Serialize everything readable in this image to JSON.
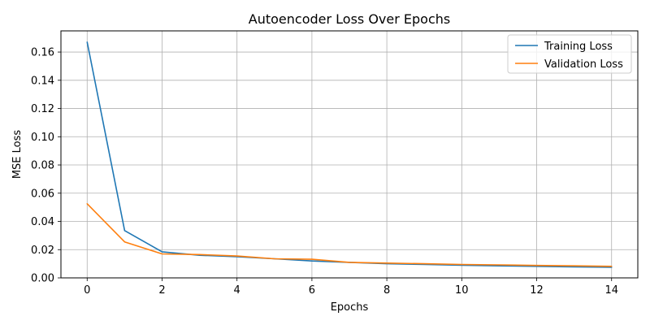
{
  "chart_data": {
    "type": "line",
    "title": "Autoencoder Loss Over Epochs",
    "xlabel": "Epochs",
    "ylabel": "MSE Loss",
    "xlim": [
      -0.7,
      14.7
    ],
    "ylim": [
      0,
      0.175
    ],
    "xticks": [
      0,
      2,
      4,
      6,
      8,
      10,
      12,
      14
    ],
    "yticks": [
      0.0,
      0.02,
      0.04,
      0.06,
      0.08,
      0.1,
      0.12,
      0.14,
      0.16
    ],
    "xtick_labels": [
      "0",
      "2",
      "4",
      "6",
      "8",
      "10",
      "12",
      "14"
    ],
    "ytick_labels": [
      "0.00",
      "0.02",
      "0.04",
      "0.06",
      "0.08",
      "0.10",
      "0.12",
      "0.14",
      "0.16"
    ],
    "grid": true,
    "legend_position": "top-right",
    "x": [
      0,
      1,
      2,
      3,
      4,
      5,
      6,
      7,
      8,
      9,
      10,
      11,
      12,
      13,
      14
    ],
    "series": [
      {
        "name": "Training Loss",
        "color": "#1f77b4",
        "values": [
          0.167,
          0.0335,
          0.0185,
          0.016,
          0.015,
          0.0135,
          0.012,
          0.011,
          0.01,
          0.0095,
          0.009,
          0.0085,
          0.0082,
          0.0078,
          0.0075
        ]
      },
      {
        "name": "Validation Loss",
        "color": "#ff7f0e",
        "values": [
          0.0525,
          0.0255,
          0.017,
          0.0165,
          0.0155,
          0.0135,
          0.0132,
          0.011,
          0.0105,
          0.01,
          0.0095,
          0.0092,
          0.0088,
          0.0085,
          0.0082
        ]
      }
    ]
  }
}
